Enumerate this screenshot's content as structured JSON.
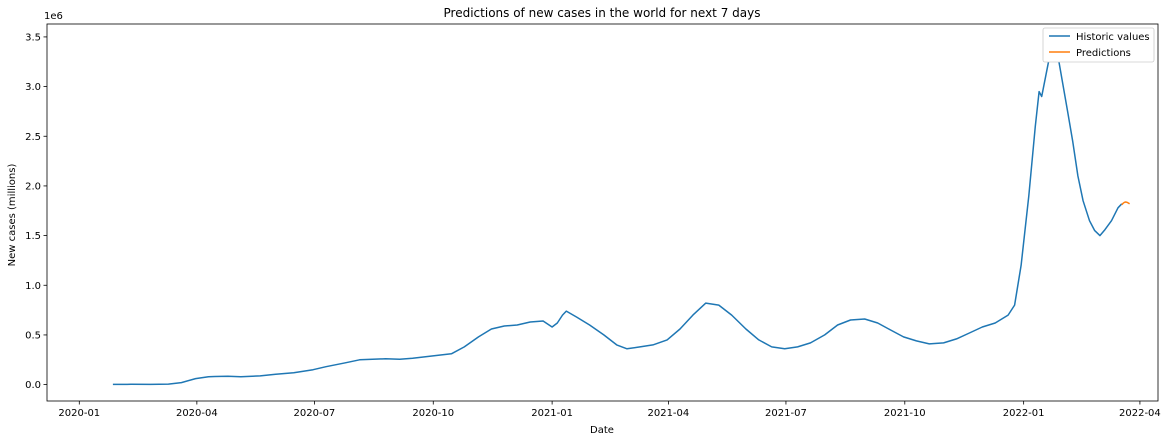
{
  "chart_data": {
    "type": "line",
    "title": "Predictions of new cases in the world for next 7 days",
    "xlabel": "Date",
    "ylabel": "New cases (millions)",
    "y_offset_text": "1e6",
    "x_type": "date",
    "xlim": [
      "2019-12-07",
      "2022-04-15"
    ],
    "ylim": [
      -165000,
      3630000
    ],
    "x_ticks": [
      "2020-01-01",
      "2020-04-01",
      "2020-07-01",
      "2020-10-01",
      "2021-01-01",
      "2021-04-01",
      "2021-07-01",
      "2021-10-01",
      "2022-01-01",
      "2022-04-01"
    ],
    "x_tick_labels": [
      "2020-01",
      "2020-04",
      "2020-07",
      "2020-10",
      "2021-01",
      "2021-04",
      "2021-07",
      "2021-10",
      "2022-01",
      "2022-04"
    ],
    "y_ticks": [
      0,
      500000,
      1000000,
      1500000,
      2000000,
      2500000,
      3000000,
      3500000
    ],
    "y_tick_labels": [
      "0.0",
      "0.5",
      "1.0",
      "1.5",
      "2.0",
      "2.5",
      "3.0",
      "3.5"
    ],
    "grid": false,
    "legend_position": "top-right",
    "series": [
      {
        "name": "Historic values",
        "color": "#1f77b4",
        "points": [
          [
            "2020-01-27",
            2000
          ],
          [
            "2020-02-10",
            3000
          ],
          [
            "2020-02-25",
            2000
          ],
          [
            "2020-03-10",
            5000
          ],
          [
            "2020-03-20",
            20000
          ],
          [
            "2020-03-31",
            60000
          ],
          [
            "2020-04-10",
            80000
          ],
          [
            "2020-04-15",
            82000
          ],
          [
            "2020-04-25",
            85000
          ],
          [
            "2020-05-05",
            80000
          ],
          [
            "2020-05-20",
            88000
          ],
          [
            "2020-06-01",
            105000
          ],
          [
            "2020-06-15",
            120000
          ],
          [
            "2020-06-30",
            150000
          ],
          [
            "2020-07-10",
            180000
          ],
          [
            "2020-07-25",
            220000
          ],
          [
            "2020-08-05",
            250000
          ],
          [
            "2020-08-15",
            255000
          ],
          [
            "2020-08-25",
            260000
          ],
          [
            "2020-09-05",
            255000
          ],
          [
            "2020-09-15",
            265000
          ],
          [
            "2020-09-25",
            280000
          ],
          [
            "2020-10-05",
            295000
          ],
          [
            "2020-10-15",
            310000
          ],
          [
            "2020-10-25",
            380000
          ],
          [
            "2020-11-05",
            480000
          ],
          [
            "2020-11-15",
            560000
          ],
          [
            "2020-11-25",
            590000
          ],
          [
            "2020-12-05",
            600000
          ],
          [
            "2020-12-15",
            630000
          ],
          [
            "2020-12-25",
            640000
          ],
          [
            "2021-01-01",
            580000
          ],
          [
            "2021-01-05",
            620000
          ],
          [
            "2021-01-09",
            700000
          ],
          [
            "2021-01-12",
            740000
          ],
          [
            "2021-01-20",
            680000
          ],
          [
            "2021-01-30",
            600000
          ],
          [
            "2021-02-10",
            500000
          ],
          [
            "2021-02-20",
            400000
          ],
          [
            "2021-02-28",
            360000
          ],
          [
            "2021-03-10",
            380000
          ],
          [
            "2021-03-20",
            400000
          ],
          [
            "2021-03-31",
            450000
          ],
          [
            "2021-04-10",
            560000
          ],
          [
            "2021-04-20",
            700000
          ],
          [
            "2021-04-30",
            820000
          ],
          [
            "2021-05-10",
            800000
          ],
          [
            "2021-05-20",
            700000
          ],
          [
            "2021-05-31",
            560000
          ],
          [
            "2021-06-10",
            450000
          ],
          [
            "2021-06-20",
            380000
          ],
          [
            "2021-06-30",
            360000
          ],
          [
            "2021-07-10",
            380000
          ],
          [
            "2021-07-20",
            420000
          ],
          [
            "2021-07-31",
            500000
          ],
          [
            "2021-08-10",
            600000
          ],
          [
            "2021-08-20",
            650000
          ],
          [
            "2021-08-31",
            660000
          ],
          [
            "2021-09-10",
            620000
          ],
          [
            "2021-09-20",
            550000
          ],
          [
            "2021-09-30",
            480000
          ],
          [
            "2021-10-10",
            440000
          ],
          [
            "2021-10-20",
            410000
          ],
          [
            "2021-10-31",
            420000
          ],
          [
            "2021-11-10",
            460000
          ],
          [
            "2021-11-20",
            520000
          ],
          [
            "2021-11-30",
            580000
          ],
          [
            "2021-12-10",
            620000
          ],
          [
            "2021-12-20",
            700000
          ],
          [
            "2021-12-25",
            800000
          ],
          [
            "2021-12-30",
            1200000
          ],
          [
            "2022-01-05",
            1900000
          ],
          [
            "2022-01-10",
            2600000
          ],
          [
            "2022-01-13",
            2950000
          ],
          [
            "2022-01-15",
            2900000
          ],
          [
            "2022-01-18",
            3100000
          ],
          [
            "2022-01-21",
            3300000
          ],
          [
            "2022-01-24",
            3440000
          ],
          [
            "2022-01-27",
            3350000
          ],
          [
            "2022-01-31",
            3050000
          ],
          [
            "2022-02-04",
            2750000
          ],
          [
            "2022-02-08",
            2450000
          ],
          [
            "2022-02-12",
            2100000
          ],
          [
            "2022-02-16",
            1850000
          ],
          [
            "2022-02-21",
            1650000
          ],
          [
            "2022-02-25",
            1550000
          ],
          [
            "2022-03-01",
            1500000
          ],
          [
            "2022-03-05",
            1560000
          ],
          [
            "2022-03-10",
            1650000
          ],
          [
            "2022-03-15",
            1780000
          ],
          [
            "2022-03-18",
            1820000
          ]
        ]
      },
      {
        "name": "Predictions",
        "color": "#ff7f0e",
        "points": [
          [
            "2022-03-18",
            1810000
          ],
          [
            "2022-03-19",
            1825000
          ],
          [
            "2022-03-20",
            1835000
          ],
          [
            "2022-03-21",
            1838000
          ],
          [
            "2022-03-22",
            1835000
          ],
          [
            "2022-03-23",
            1828000
          ],
          [
            "2022-03-24",
            1820000
          ]
        ]
      }
    ]
  }
}
